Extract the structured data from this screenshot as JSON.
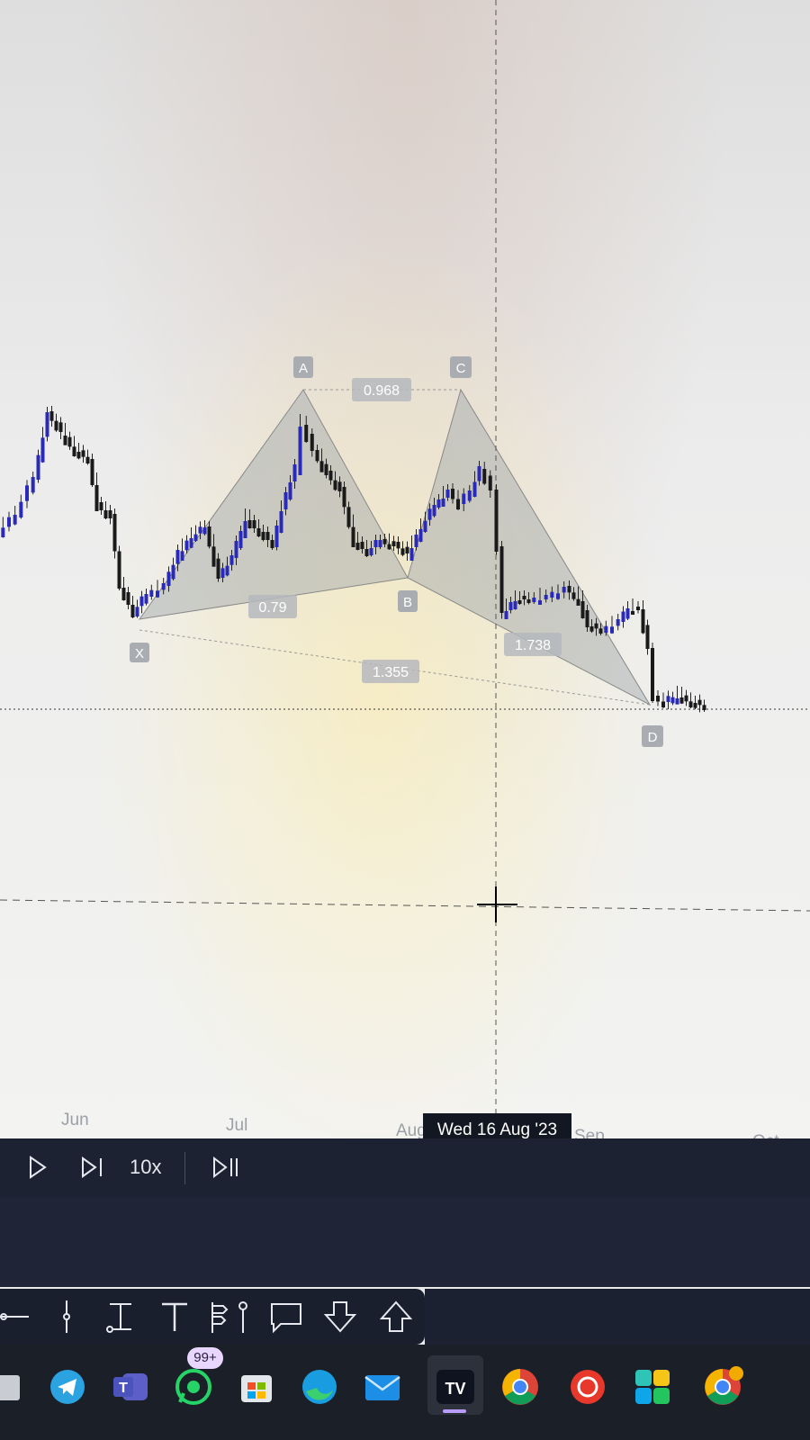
{
  "chart": {
    "pattern_points": {
      "x": "X",
      "a": "A",
      "b": "B",
      "c": "C",
      "d": "D"
    },
    "ratios": {
      "xb": "0.79",
      "ac": "0.968",
      "bd": "1.738",
      "xd": "1.355"
    },
    "months": [
      "Jun",
      "Jul",
      "Aug",
      "Sep",
      "Oct"
    ],
    "crosshair_date": "Wed 16 Aug '23",
    "colors": {
      "candle_up": "#2a2ab8",
      "candle_down": "#1a1a1a",
      "pattern_fill": "#9ea3a8"
    }
  },
  "replay": {
    "play_icon": "play-icon",
    "step_icon": "step-forward-icon",
    "speed": "10x",
    "jump_icon": "jump-to-realtime-icon"
  },
  "drawing_tools": [
    "line-tool-icon",
    "vertical-line-tool-icon",
    "text-cursor-tool-icon",
    "text-tool-icon",
    "signpost-tool-icon",
    "pin-tool-icon",
    "callout-tool-icon",
    "arrow-down-marker-icon",
    "arrow-up-marker-icon"
  ],
  "taskbar": {
    "apps": [
      "file-explorer-icon",
      "telegram-icon",
      "teams-icon",
      "whatsapp-icon",
      "store-icon",
      "edge-icon",
      "mail-icon",
      "tradingview-icon",
      "chrome-icon",
      "app-icon",
      "puzzle-app-icon",
      "chrome-canary-icon"
    ],
    "whatsapp_badge": "99+",
    "tradingview_logo": "TV"
  }
}
